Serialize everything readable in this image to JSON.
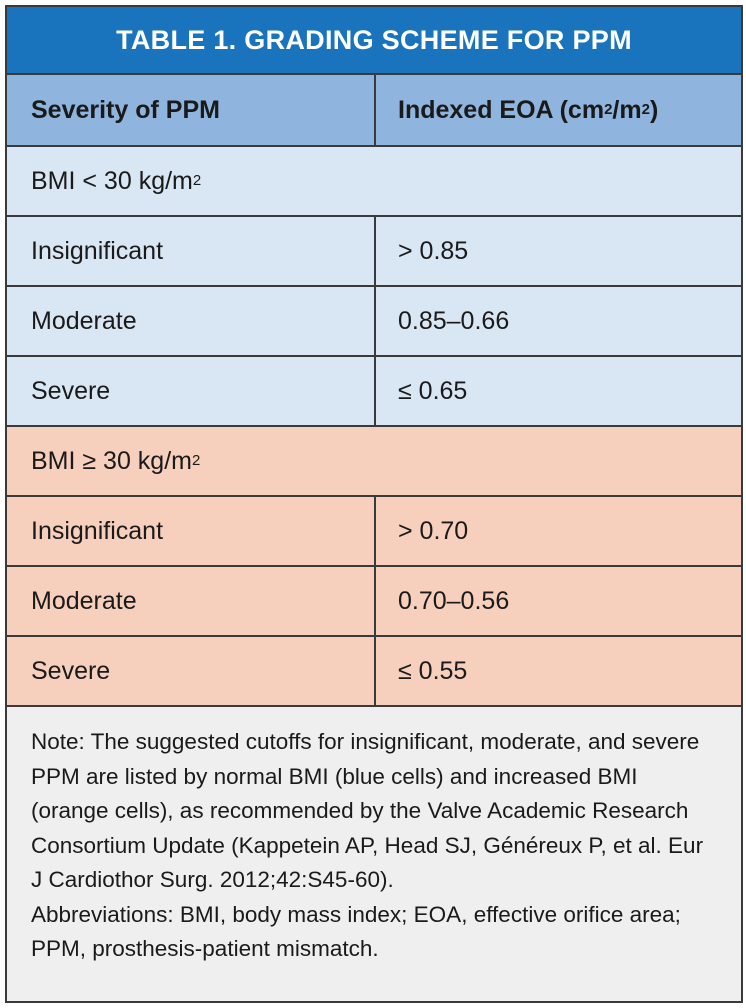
{
  "title": "TABLE 1.  GRADING SCHEME FOR PPM",
  "header": {
    "col1": "Severity of PPM",
    "col2_text": "Indexed EOA (cm",
    "col2_sup1": "2",
    "col2_mid": "/m",
    "col2_sup2": "2",
    "col2_end": ")"
  },
  "groups": [
    {
      "label_text": "BMI < 30 kg/m",
      "label_sup": "2",
      "rows": [
        {
          "severity": "Insignificant",
          "eoa": "> 0.85"
        },
        {
          "severity": "Moderate",
          "eoa": "0.85–0.66"
        },
        {
          "severity": "Severe",
          "eoa": "≤ 0.65"
        }
      ]
    },
    {
      "label_text": "BMI ≥ 30 kg/m",
      "label_sup": "2",
      "rows": [
        {
          "severity": "Insignificant",
          "eoa": "> 0.70"
        },
        {
          "severity": "Moderate",
          "eoa": "0.70–0.56"
        },
        {
          "severity": "Severe",
          "eoa": "≤ 0.55"
        }
      ]
    }
  ],
  "note": "Note: The suggested cutoffs for insignificant, moderate, and severe PPM are listed by normal BMI (blue cells) and increased BMI (orange cells), as recommended by the Valve Academic Research Consortium Update (Kappetein AP, Head SJ, Généreux P, et al. Eur J Cardiothor Surg. 2012;42:S45-60).",
  "abbreviations": "Abbreviations: BMI, body mass index; EOA, effective orifice area; PPM, prosthesis-patient mismatch.",
  "colors": {
    "title_bar": "#1a73bd",
    "header_row": "#8fb4de",
    "normal_bmi": "#d9e6f4",
    "increased_bmi": "#f6cfbd",
    "note_bg": "#efefef",
    "border": "#3a3a3a"
  }
}
